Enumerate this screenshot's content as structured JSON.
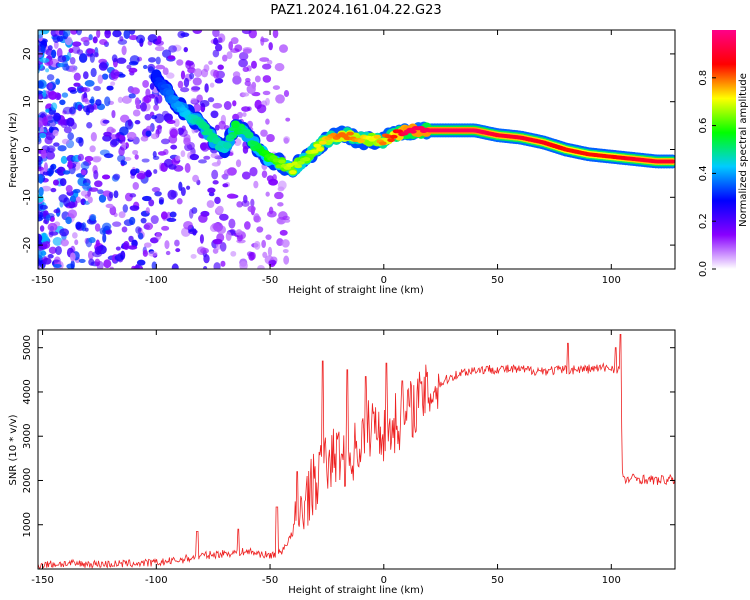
{
  "figure": {
    "title": "PAZ1.2024.161.04.22.G23"
  },
  "chart_data": [
    {
      "type": "heatmap",
      "xlabel": "Height of straight line (km)",
      "ylabel": "Frequency (Hz)",
      "xlim": [
        -152,
        128
      ],
      "ylim": [
        -25,
        25
      ],
      "xticks": [
        -150,
        -100,
        -50,
        0,
        50,
        100
      ],
      "yticks": [
        -20,
        -10,
        0,
        10,
        20
      ],
      "colormap": [
        "#ffffff",
        "#8800ff",
        "#0000ff",
        "#00ccff",
        "#00ff00",
        "#ffff00",
        "#ff0000",
        "#ff0088"
      ],
      "colorbar": {
        "label": "Normalized spectral amplitude",
        "range": [
          0,
          1
        ],
        "ticks": [
          0.0,
          0.2,
          0.4,
          0.6,
          0.8
        ]
      },
      "ridge": {
        "x": [
          -100,
          -95,
          -90,
          -85,
          -80,
          -75,
          -70,
          -65,
          -60,
          -55,
          -50,
          -45,
          -40,
          -35,
          -30,
          -25,
          -20,
          -15,
          -10,
          -5,
          0,
          5,
          10,
          20,
          30,
          40,
          50,
          60,
          70,
          80,
          90,
          100,
          110,
          120,
          128
        ],
        "frequency_hz": [
          15,
          12,
          9,
          7,
          5,
          2,
          0,
          5,
          3,
          0,
          -2,
          -3,
          -4,
          -2,
          0,
          2,
          3,
          3,
          2,
          2,
          2,
          3,
          4,
          4,
          4,
          4,
          3,
          2.5,
          1.5,
          0,
          -1,
          -1.5,
          -2,
          -2.5,
          -2.5
        ],
        "normalized_amplitude": [
          0.3,
          0.35,
          0.4,
          0.45,
          0.5,
          0.5,
          0.45,
          0.55,
          0.5,
          0.55,
          0.6,
          0.65,
          0.7,
          0.65,
          0.7,
          0.75,
          0.8,
          0.8,
          0.75,
          0.7,
          0.8,
          0.85,
          0.95,
          0.95,
          0.95,
          0.95,
          0.9,
          0.9,
          0.88,
          0.85,
          0.85,
          0.85,
          0.9,
          0.9,
          0.9
        ]
      }
    },
    {
      "type": "line",
      "xlabel": "Height of straight line (km)",
      "ylabel": "SNR (10 * v/v)",
      "xlim": [
        -152,
        128
      ],
      "ylim": [
        0,
        5400
      ],
      "xticks": [
        -150,
        -100,
        -50,
        0,
        50,
        100
      ],
      "yticks": [
        1000,
        2000,
        3000,
        4000,
        5000
      ],
      "series": [
        {
          "color": "#ee2222",
          "x": [
            -152,
            -140,
            -120,
            -100,
            -90,
            -80,
            -70,
            -60,
            -55,
            -50,
            -45,
            -40,
            -35,
            -30,
            -25,
            -20,
            -15,
            -10,
            -5,
            0,
            5,
            10,
            15,
            20,
            25,
            30,
            35,
            40,
            50,
            60,
            70,
            80,
            90,
            100,
            104,
            105,
            110,
            120,
            128
          ],
          "y": [
            100,
            120,
            110,
            140,
            200,
            300,
            350,
            400,
            350,
            300,
            400,
            800,
            1500,
            2000,
            2400,
            2600,
            2500,
            2900,
            3300,
            3100,
            3300,
            3500,
            3800,
            4000,
            4200,
            4350,
            4450,
            4500,
            4520,
            4500,
            4480,
            4500,
            4520,
            4550,
            4500,
            2000,
            2050,
            2000,
            2020
          ],
          "spike_x": [
            -82,
            -64,
            -47,
            -38,
            -27,
            -16,
            -8,
            1,
            8,
            81,
            102,
            104
          ],
          "spike_y": [
            850,
            900,
            1400,
            2200,
            4700,
            4500,
            4350,
            4650,
            4250,
            5100,
            5000,
            5300
          ]
        }
      ]
    }
  ]
}
